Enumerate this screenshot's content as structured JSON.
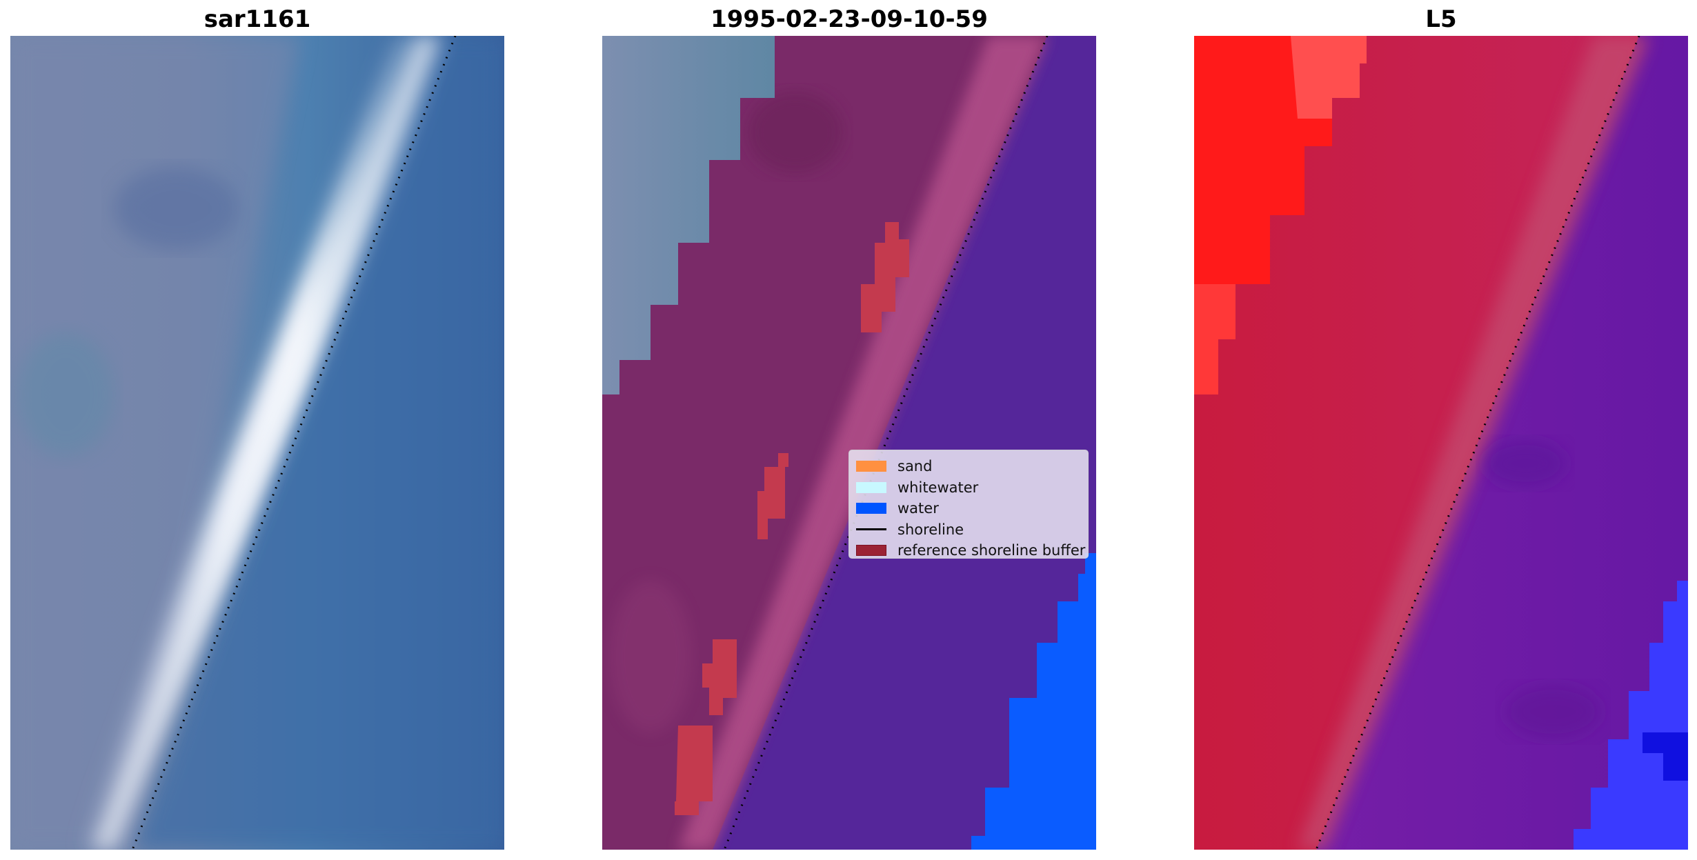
{
  "panels": [
    {
      "title": "sar1161"
    },
    {
      "title": "1995-02-23-09-10-59"
    },
    {
      "title": "L5"
    }
  ],
  "legend": {
    "items": [
      {
        "label": "sand",
        "color": "#ff9040",
        "kind": "patch"
      },
      {
        "label": "whitewater",
        "color": "#c8f8ff",
        "kind": "patch"
      },
      {
        "label": "water",
        "color": "#0055ff",
        "kind": "patch"
      },
      {
        "label": "shoreline",
        "color": "#000000",
        "kind": "line"
      },
      {
        "label": "reference shoreline buffer",
        "color": "#9b2335",
        "kind": "patch"
      }
    ]
  },
  "colors": {
    "rgb_sky": "#6f86ae",
    "rgb_water": "#3f72a8",
    "rgb_whitewater": "#e9eef6",
    "class_land": "#7a2a68",
    "class_land_edge": "#b04d88",
    "class_gray": "#6b8aa6",
    "class_water": "#55269a",
    "class_water_blue": "#0055ff",
    "buffer": "#c43a4e",
    "ndwi_red": "#ff1a1a",
    "ndwi_crimson": "#c41c45",
    "ndwi_purple": "#6e1ca4",
    "ndwi_blue": "#3a3aff"
  }
}
